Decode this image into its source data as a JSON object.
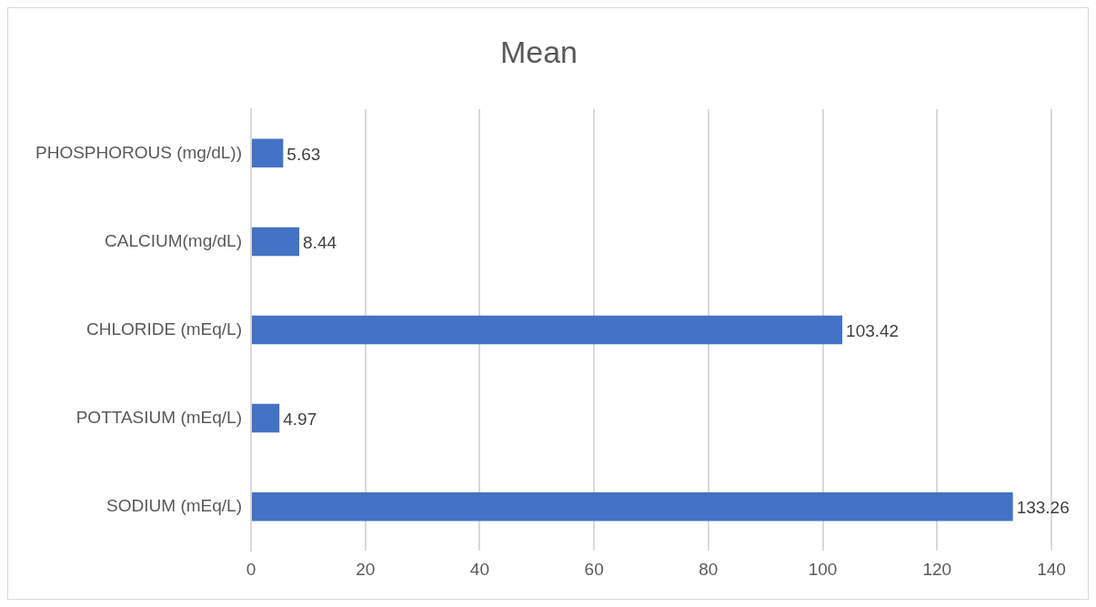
{
  "chart_data": {
    "type": "bar",
    "orientation": "horizontal",
    "title": "Mean",
    "categories": [
      "PHOSPHOROUS (mg/dL))",
      "CALCIUM(mg/dL)",
      "CHLORIDE (mEq/L)",
      "POTTASIUM (mEq/L)",
      "SODIUM (mEq/L)"
    ],
    "values": [
      5.63,
      8.44,
      103.42,
      4.97,
      133.26
    ],
    "color": "#4472c4",
    "xlim": [
      0,
      140
    ],
    "xticks": [
      0,
      20,
      40,
      60,
      80,
      100,
      120,
      140
    ],
    "grid": "x",
    "data_labels": true,
    "legend": false
  }
}
